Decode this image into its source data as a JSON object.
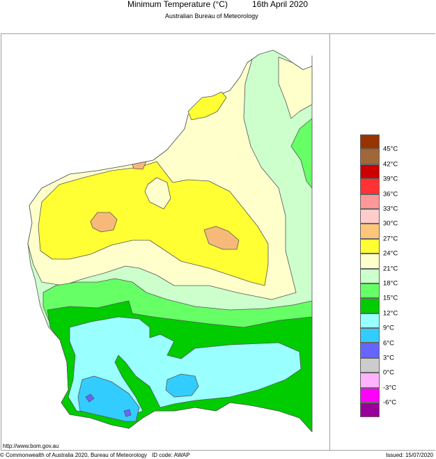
{
  "header": {
    "title": "Minimum Temperature (°C)",
    "date": "16th April 2020",
    "subtitle": "Australian Bureau of Meteorology"
  },
  "legend": {
    "unit": "°C",
    "bins": [
      {
        "color": "#993300",
        "label": "45°C"
      },
      {
        "color": "#a0683a",
        "label": "42°C"
      },
      {
        "color": "#cc0000",
        "label": "39°C"
      },
      {
        "color": "#ff3333",
        "label": "36°C"
      },
      {
        "color": "#ff9999",
        "label": "33°C"
      },
      {
        "color": "#ffcccc",
        "label": "30°C"
      },
      {
        "color": "#ffc67a",
        "label": "27°C"
      },
      {
        "color": "#ffff33",
        "label": "24°C"
      },
      {
        "color": "#ffffcc",
        "label": "21°C"
      },
      {
        "color": "#ccffcc",
        "label": "18°C"
      },
      {
        "color": "#66ff66",
        "label": "15°C"
      },
      {
        "color": "#00cc00",
        "label": "12°C"
      },
      {
        "color": "#99ffff",
        "label": "9°C"
      },
      {
        "color": "#33ccff",
        "label": "6°C"
      },
      {
        "color": "#6666ff",
        "label": "3°C"
      },
      {
        "color": "#cccccc",
        "label": "0°C"
      },
      {
        "color": "#ffb3ff",
        "label": "-3°C"
      },
      {
        "color": "#ff00ff",
        "label": "-6°C"
      },
      {
        "color": "#990099",
        "label": ""
      }
    ]
  },
  "map": {
    "region": "Western Australia",
    "colors": {
      "t27_30": "#f7b97a",
      "t24_27": "#ffff33",
      "t21_24": "#ffffcc",
      "t18_21": "#ccffcc",
      "t15_18": "#66ff66",
      "t12_15": "#00cc00",
      "t9_12": "#99ffff",
      "t6_9": "#33ccff",
      "t3_6": "#6666ff"
    }
  },
  "footer": {
    "url": "http://www.bom.gov.au",
    "copyright": "© Commonwealth of Australia 2020, Bureau of Meteorology",
    "id_code": "ID code: AWAP",
    "issued": "Issued: 15/07/2020"
  }
}
